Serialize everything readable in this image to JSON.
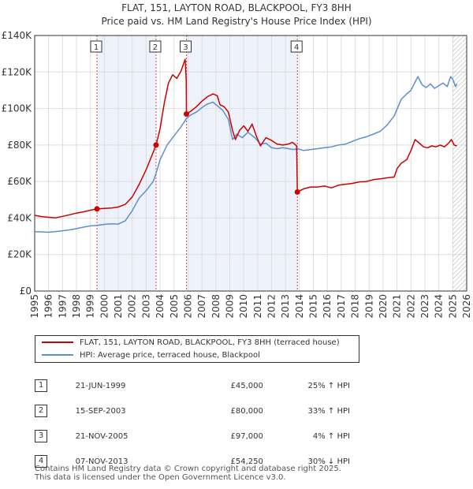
{
  "chart_data": {
    "type": "line",
    "title": "FLAT, 151, LAYTON ROAD, BLACKPOOL, FY3 8HH",
    "subtitle": "Price paid vs. HM Land Registry's House Price Index (HPI)",
    "xlim": [
      1995,
      2026
    ],
    "ylim": [
      0,
      140000
    ],
    "y_ticks": [
      0,
      20000,
      40000,
      60000,
      80000,
      100000,
      120000,
      140000
    ],
    "y_tick_labels": [
      "£0",
      "£20K",
      "£40K",
      "£60K",
      "£80K",
      "£100K",
      "£120K",
      "£140K"
    ],
    "x_ticks": [
      1995,
      1996,
      1997,
      1998,
      1999,
      2000,
      2001,
      2002,
      2003,
      2004,
      2005,
      2006,
      2007,
      2008,
      2009,
      2010,
      2011,
      2012,
      2013,
      2014,
      2015,
      2016,
      2017,
      2018,
      2019,
      2020,
      2021,
      2022,
      2023,
      2024,
      2025,
      2026
    ],
    "x_tick_labels": [
      "1995",
      "1996",
      "1997",
      "1998",
      "1999",
      "2000",
      "2001",
      "2002",
      "2003",
      "2004",
      "2005",
      "2006",
      "2007",
      "2008",
      "2009",
      "2010",
      "2011",
      "2012",
      "2013",
      "2014",
      "2015",
      "2016",
      "2017",
      "2018",
      "2019",
      "2020",
      "2021",
      "2022",
      "2023",
      "2024",
      "2025",
      "2026"
    ],
    "grid": true,
    "shaded_periods": [
      [
        1999.47,
        2003.71
      ],
      [
        2005.89,
        2013.85
      ]
    ],
    "future_hatch_from": 2025.0,
    "series": [
      {
        "name": "FLAT, 151, LAYTON ROAD, BLACKPOOL, FY3 8HH (terraced house)",
        "color": "#cc0000",
        "points": [
          [
            1995.0,
            41500
          ],
          [
            1995.5,
            40800
          ],
          [
            1996.0,
            40400
          ],
          [
            1996.5,
            40100
          ],
          [
            1997.0,
            40900
          ],
          [
            1997.5,
            41800
          ],
          [
            1998.0,
            42700
          ],
          [
            1998.5,
            43400
          ],
          [
            1999.0,
            44300
          ],
          [
            1999.47,
            45000
          ],
          [
            2000.0,
            45300
          ],
          [
            2000.5,
            45500
          ],
          [
            2001.0,
            46000
          ],
          [
            2001.5,
            47500
          ],
          [
            2002.0,
            51500
          ],
          [
            2002.5,
            58500
          ],
          [
            2003.0,
            66500
          ],
          [
            2003.5,
            76000
          ],
          [
            2003.71,
            80000
          ],
          [
            2004.0,
            89000
          ],
          [
            2004.3,
            103000
          ],
          [
            2004.6,
            114000
          ],
          [
            2004.9,
            118500
          ],
          [
            2005.2,
            116500
          ],
          [
            2005.5,
            120500
          ],
          [
            2005.8,
            127000
          ],
          [
            2005.87,
            116000
          ],
          [
            2005.89,
            97000
          ],
          [
            2006.2,
            98500
          ],
          [
            2006.6,
            101000
          ],
          [
            2007.0,
            104000
          ],
          [
            2007.4,
            106500
          ],
          [
            2007.8,
            108000
          ],
          [
            2008.1,
            107000
          ],
          [
            2008.3,
            102000
          ],
          [
            2008.6,
            101000
          ],
          [
            2008.9,
            98000
          ],
          [
            2009.2,
            88000
          ],
          [
            2009.4,
            83000
          ],
          [
            2009.7,
            88000
          ],
          [
            2010.0,
            90500
          ],
          [
            2010.3,
            87500
          ],
          [
            2010.6,
            91500
          ],
          [
            2010.9,
            85000
          ],
          [
            2011.2,
            79500
          ],
          [
            2011.6,
            84000
          ],
          [
            2012.0,
            82500
          ],
          [
            2012.4,
            80500
          ],
          [
            2012.8,
            80000
          ],
          [
            2013.2,
            80500
          ],
          [
            2013.5,
            81500
          ],
          [
            2013.8,
            79500
          ],
          [
            2013.85,
            54250
          ],
          [
            2014.3,
            56000
          ],
          [
            2014.8,
            57000
          ],
          [
            2015.3,
            57000
          ],
          [
            2015.8,
            57500
          ],
          [
            2016.3,
            56500
          ],
          [
            2016.8,
            58000
          ],
          [
            2017.3,
            58500
          ],
          [
            2017.8,
            59000
          ],
          [
            2018.3,
            59800
          ],
          [
            2018.8,
            60000
          ],
          [
            2019.3,
            61000
          ],
          [
            2019.8,
            61500
          ],
          [
            2020.3,
            62000
          ],
          [
            2020.8,
            62500
          ],
          [
            2021.0,
            67000
          ],
          [
            2021.3,
            70000
          ],
          [
            2021.7,
            72000
          ],
          [
            2022.0,
            77000
          ],
          [
            2022.3,
            83000
          ],
          [
            2022.6,
            81000
          ],
          [
            2022.9,
            79000
          ],
          [
            2023.2,
            78500
          ],
          [
            2023.5,
            79500
          ],
          [
            2023.8,
            79000
          ],
          [
            2024.1,
            80000
          ],
          [
            2024.4,
            79000
          ],
          [
            2024.7,
            81000
          ],
          [
            2024.9,
            83000
          ],
          [
            2025.1,
            80000
          ],
          [
            2025.3,
            79500
          ]
        ]
      },
      {
        "name": "HPI: Average price, terraced house, Blackpool",
        "color": "#5b8fd0",
        "points": [
          [
            1995.0,
            32500
          ],
          [
            1995.5,
            32400
          ],
          [
            1996.0,
            32200
          ],
          [
            1996.5,
            32600
          ],
          [
            1997.0,
            33000
          ],
          [
            1997.5,
            33500
          ],
          [
            1998.0,
            34200
          ],
          [
            1998.5,
            35000
          ],
          [
            1999.0,
            35700
          ],
          [
            1999.47,
            36000
          ],
          [
            2000.0,
            36500
          ],
          [
            2000.5,
            36800
          ],
          [
            2001.0,
            36700
          ],
          [
            2001.5,
            38500
          ],
          [
            2002.0,
            44000
          ],
          [
            2002.5,
            51000
          ],
          [
            2003.0,
            55000
          ],
          [
            2003.5,
            60000
          ],
          [
            2003.71,
            64500
          ],
          [
            2004.0,
            72000
          ],
          [
            2004.5,
            80000
          ],
          [
            2005.0,
            85000
          ],
          [
            2005.5,
            90000
          ],
          [
            2005.89,
            94500
          ],
          [
            2006.2,
            96500
          ],
          [
            2006.6,
            98000
          ],
          [
            2007.0,
            100500
          ],
          [
            2007.4,
            102500
          ],
          [
            2007.8,
            103500
          ],
          [
            2008.1,
            101500
          ],
          [
            2008.5,
            99000
          ],
          [
            2008.9,
            94000
          ],
          [
            2009.2,
            83000
          ],
          [
            2009.5,
            86000
          ],
          [
            2009.9,
            84000
          ],
          [
            2010.3,
            87000
          ],
          [
            2010.8,
            84000
          ],
          [
            2011.2,
            80500
          ],
          [
            2011.6,
            81000
          ],
          [
            2012.0,
            78500
          ],
          [
            2012.4,
            78000
          ],
          [
            2012.8,
            78500
          ],
          [
            2013.2,
            78000
          ],
          [
            2013.6,
            77500
          ],
          [
            2013.85,
            78000
          ],
          [
            2014.3,
            77000
          ],
          [
            2014.8,
            77500
          ],
          [
            2015.3,
            78000
          ],
          [
            2015.8,
            78500
          ],
          [
            2016.3,
            79000
          ],
          [
            2016.8,
            80000
          ],
          [
            2017.3,
            80500
          ],
          [
            2017.8,
            82000
          ],
          [
            2018.3,
            83500
          ],
          [
            2018.8,
            84500
          ],
          [
            2019.3,
            86000
          ],
          [
            2019.8,
            87500
          ],
          [
            2020.3,
            91000
          ],
          [
            2020.8,
            96000
          ],
          [
            2021.3,
            105000
          ],
          [
            2021.7,
            108000
          ],
          [
            2022.0,
            110000
          ],
          [
            2022.3,
            114500
          ],
          [
            2022.5,
            117500
          ],
          [
            2022.8,
            113000
          ],
          [
            2023.1,
            111500
          ],
          [
            2023.4,
            113500
          ],
          [
            2023.7,
            111000
          ],
          [
            2024.0,
            112500
          ],
          [
            2024.3,
            114000
          ],
          [
            2024.6,
            112000
          ],
          [
            2024.85,
            117500
          ],
          [
            2025.0,
            116000
          ],
          [
            2025.2,
            112000
          ],
          [
            2025.3,
            113500
          ]
        ]
      }
    ],
    "transactions": [
      {
        "label": "1",
        "x": 1999.47,
        "price": 45000
      },
      {
        "label": "2",
        "x": 2003.71,
        "price": 80000
      },
      {
        "label": "3",
        "x": 2005.89,
        "price": 97000
      },
      {
        "label": "4",
        "x": 2013.85,
        "price": 54250
      }
    ]
  },
  "legend": {
    "property_line": "FLAT, 151, LAYTON ROAD, BLACKPOOL, FY3 8HH (terraced house)",
    "hpi_line": "HPI: Average price, terraced house, Blackpool"
  },
  "sales": [
    {
      "num": "1",
      "date": "21-JUN-1999",
      "price": "£45,000",
      "hpi": "25% ↑ HPI"
    },
    {
      "num": "2",
      "date": "15-SEP-2003",
      "price": "£80,000",
      "hpi": "33% ↑ HPI"
    },
    {
      "num": "3",
      "date": "21-NOV-2005",
      "price": "£97,000",
      "hpi": "4% ↑ HPI"
    },
    {
      "num": "4",
      "date": "07-NOV-2013",
      "price": "£54,250",
      "hpi": "30% ↓ HPI"
    }
  ],
  "footer": {
    "line1": "Contains HM Land Registry data © Crown copyright and database right 2025.",
    "line2": "This data is licensed under the Open Government Licence v3.0."
  }
}
